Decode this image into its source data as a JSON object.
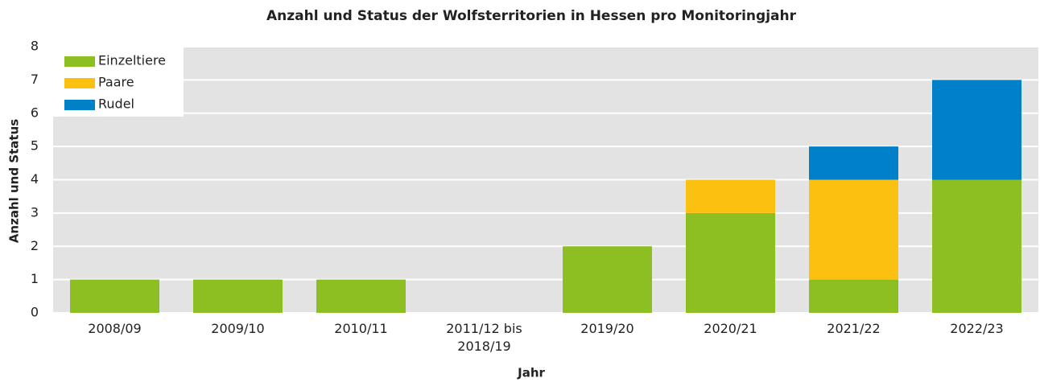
{
  "chart_data": {
    "type": "stacked_bar",
    "title": "Anzahl und Status der Wolfsterritorien in Hessen pro Monitoringjahr",
    "x_label": "Jahr",
    "y_label": "Anzahl und Status",
    "categories": [
      "2008/09",
      "2009/10",
      "2010/11",
      "2011/12 bis 2018/19",
      "2019/20",
      "2020/21",
      "2021/22",
      "2022/23"
    ],
    "series": [
      {
        "name": "Einzeltiere",
        "color": "#8dbe22",
        "values": [
          1,
          1,
          1,
          0,
          2,
          3,
          1,
          4
        ]
      },
      {
        "name": "Paare",
        "color": "#fcc010",
        "values": [
          0,
          0,
          0,
          0,
          0,
          1,
          3,
          0
        ]
      },
      {
        "name": "Rudel",
        "color": "#0080c8",
        "values": [
          0,
          0,
          0,
          0,
          0,
          0,
          1,
          3
        ]
      }
    ],
    "ylim": [
      0,
      8
    ],
    "yticks": [
      0,
      1,
      2,
      3,
      4,
      5,
      6,
      7,
      8
    ],
    "grid": true,
    "legend": "top-left"
  }
}
